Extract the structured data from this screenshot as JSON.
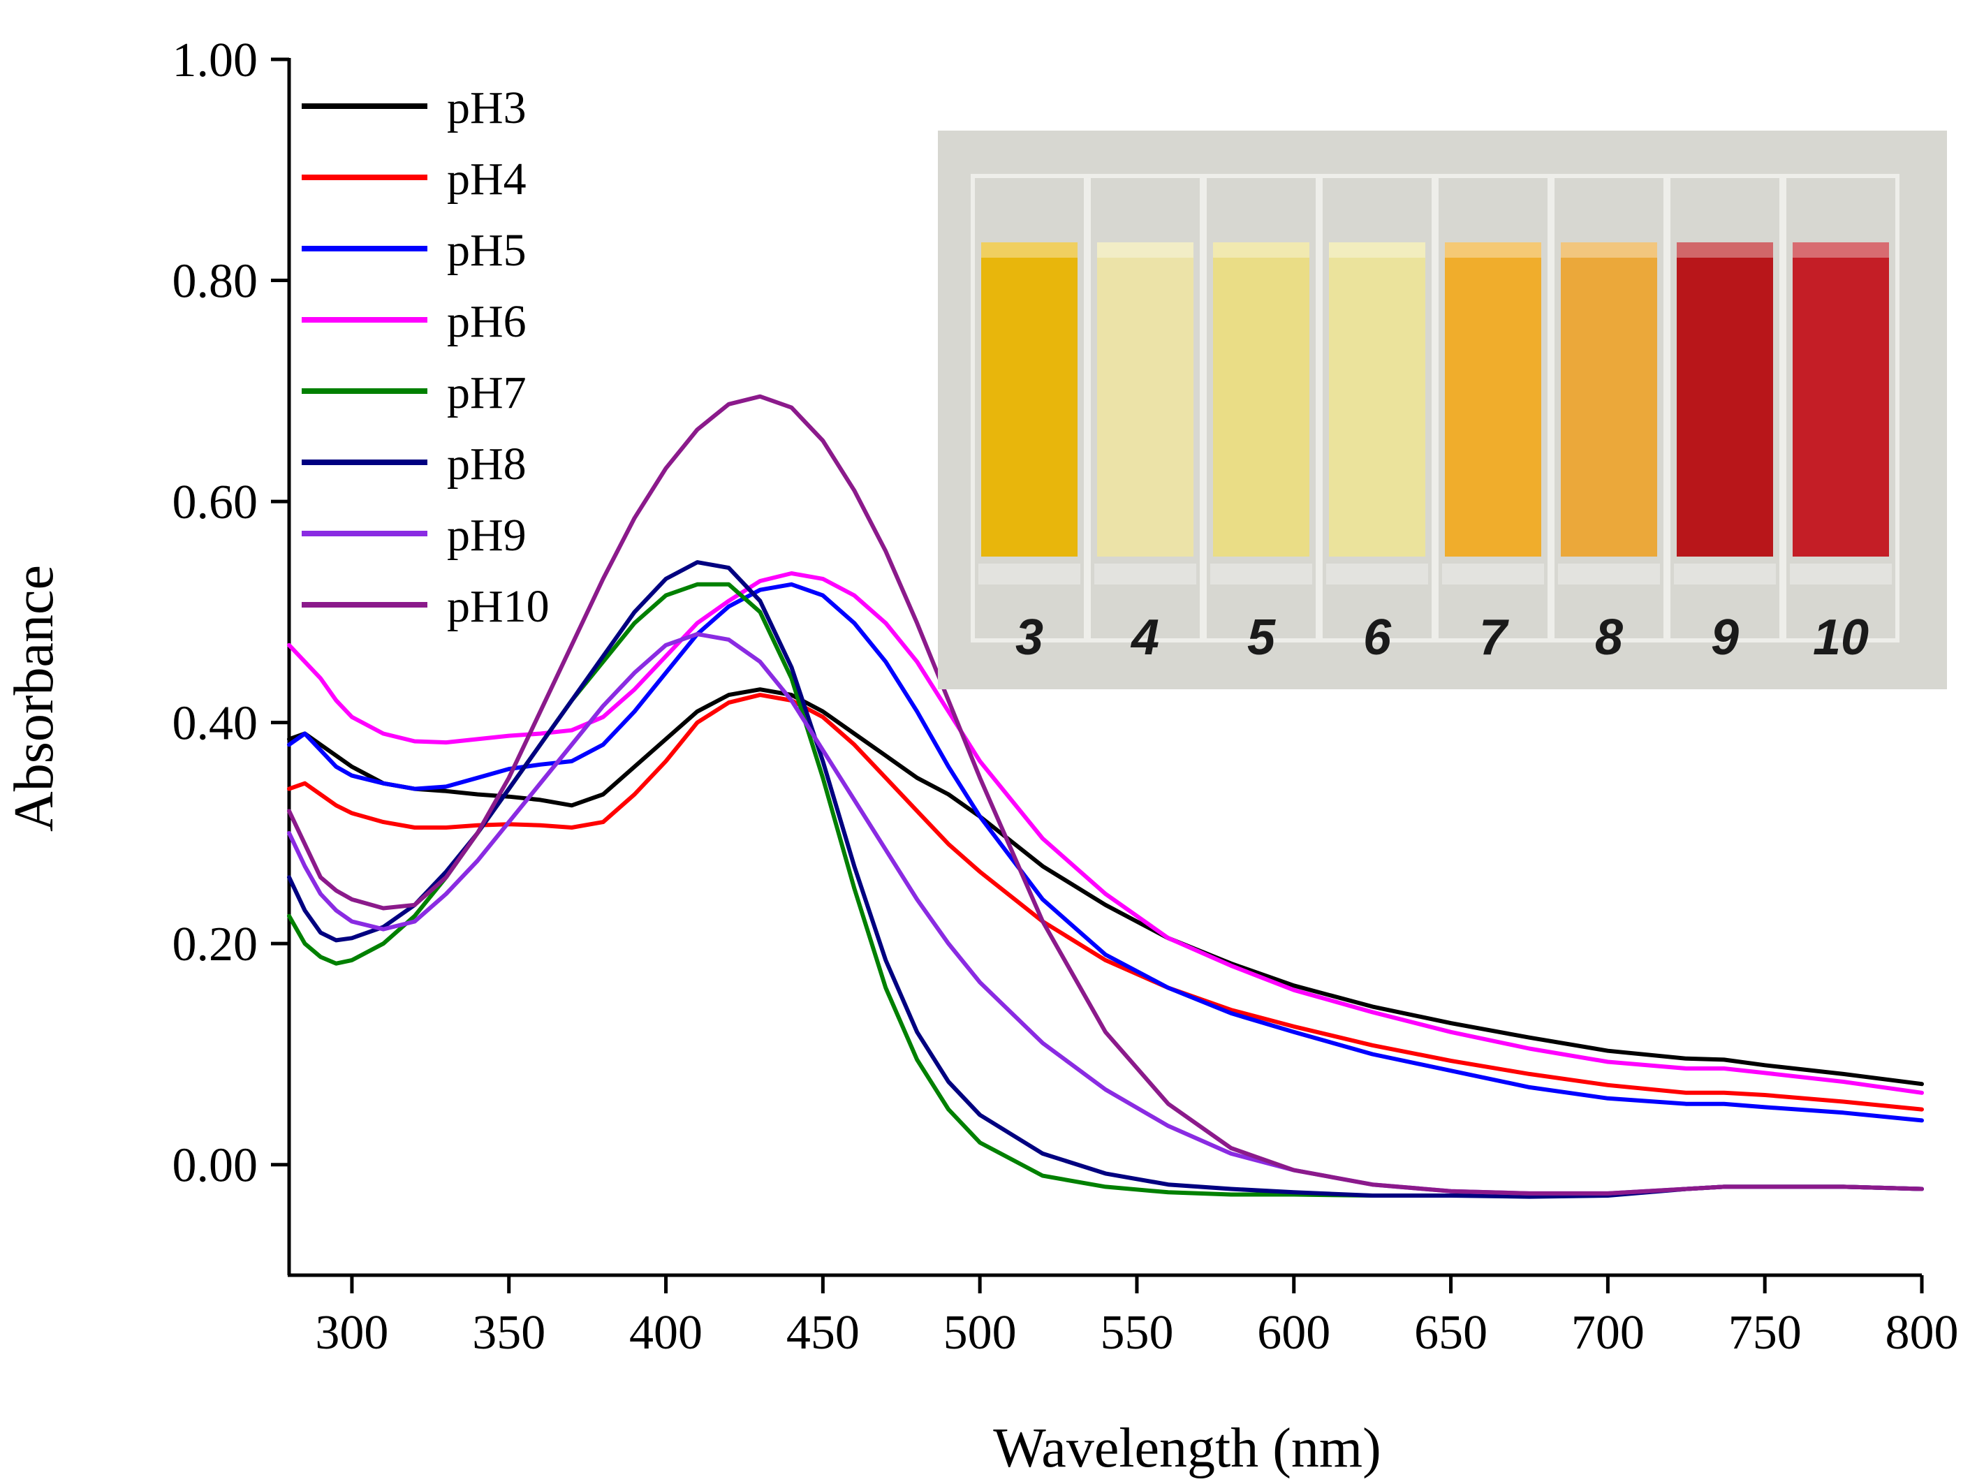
{
  "chart_data": {
    "type": "line",
    "xlabel": "Wavelength (nm)",
    "ylabel": "Absorbance",
    "xlim": [
      280,
      800
    ],
    "ylim": [
      -0.1,
      1.0
    ],
    "xticks": [
      300,
      350,
      400,
      450,
      500,
      550,
      600,
      650,
      700,
      750,
      800
    ],
    "xtick_labels": [
      "300",
      "350",
      "400",
      "450",
      "500",
      "550",
      "600",
      "650",
      "700",
      "750",
      "800"
    ],
    "yticks": [
      0.0,
      0.2,
      0.4,
      0.6,
      0.8,
      1.0
    ],
    "ytick_labels": [
      "0.00",
      "0.20",
      "0.40",
      "0.60",
      "0.80",
      "1.00"
    ],
    "grid": false,
    "legend_position": "top-left",
    "x": [
      280,
      285,
      290,
      295,
      300,
      310,
      320,
      330,
      340,
      350,
      360,
      370,
      380,
      390,
      400,
      410,
      420,
      430,
      440,
      450,
      460,
      470,
      480,
      490,
      500,
      520,
      540,
      560,
      580,
      600,
      625,
      650,
      675,
      700,
      725,
      737,
      750,
      775,
      800
    ],
    "series": [
      {
        "name": "pH3",
        "color": "#000000",
        "values": [
          0.385,
          0.39,
          0.38,
          0.37,
          0.36,
          0.345,
          0.34,
          0.338,
          0.335,
          0.333,
          0.33,
          0.325,
          0.335,
          0.36,
          0.385,
          0.41,
          0.425,
          0.43,
          0.425,
          0.41,
          0.39,
          0.37,
          0.35,
          0.335,
          0.315,
          0.27,
          0.235,
          0.205,
          0.182,
          0.162,
          0.143,
          0.128,
          0.115,
          0.103,
          0.096,
          0.095,
          0.09,
          0.082,
          0.073
        ]
      },
      {
        "name": "pH4",
        "color": "#ff0000",
        "values": [
          0.34,
          0.345,
          0.335,
          0.325,
          0.318,
          0.31,
          0.305,
          0.305,
          0.307,
          0.308,
          0.307,
          0.305,
          0.31,
          0.335,
          0.365,
          0.4,
          0.418,
          0.425,
          0.42,
          0.405,
          0.38,
          0.35,
          0.32,
          0.29,
          0.265,
          0.22,
          0.185,
          0.16,
          0.14,
          0.125,
          0.108,
          0.094,
          0.082,
          0.072,
          0.065,
          0.065,
          0.063,
          0.057,
          0.05
        ]
      },
      {
        "name": "pH5",
        "color": "#0000ff",
        "values": [
          0.38,
          0.39,
          0.375,
          0.36,
          0.352,
          0.345,
          0.34,
          0.342,
          0.35,
          0.358,
          0.362,
          0.365,
          0.38,
          0.41,
          0.445,
          0.48,
          0.505,
          0.52,
          0.525,
          0.515,
          0.49,
          0.455,
          0.41,
          0.36,
          0.315,
          0.24,
          0.19,
          0.16,
          0.137,
          0.12,
          0.1,
          0.085,
          0.07,
          0.06,
          0.055,
          0.055,
          0.052,
          0.047,
          0.04
        ]
      },
      {
        "name": "pH6",
        "color": "#ff00ff",
        "values": [
          0.47,
          0.455,
          0.44,
          0.42,
          0.405,
          0.39,
          0.383,
          0.382,
          0.385,
          0.388,
          0.39,
          0.393,
          0.405,
          0.43,
          0.46,
          0.49,
          0.51,
          0.528,
          0.535,
          0.53,
          0.515,
          0.49,
          0.455,
          0.41,
          0.365,
          0.295,
          0.245,
          0.205,
          0.18,
          0.158,
          0.138,
          0.12,
          0.105,
          0.093,
          0.087,
          0.087,
          0.083,
          0.075,
          0.065
        ]
      },
      {
        "name": "pH7",
        "color": "#008000",
        "values": [
          0.225,
          0.2,
          0.188,
          0.182,
          0.185,
          0.2,
          0.225,
          0.26,
          0.3,
          0.34,
          0.38,
          0.42,
          0.455,
          0.49,
          0.515,
          0.525,
          0.525,
          0.5,
          0.44,
          0.35,
          0.25,
          0.16,
          0.095,
          0.05,
          0.02,
          -0.01,
          -0.02,
          -0.025,
          -0.027,
          -0.027,
          -0.028,
          -0.028,
          -0.028,
          -0.027,
          -0.022,
          -0.02,
          -0.02,
          -0.02,
          -0.022
        ]
      },
      {
        "name": "pH8",
        "color": "#000080",
        "values": [
          0.26,
          0.23,
          0.21,
          0.203,
          0.205,
          0.215,
          0.235,
          0.265,
          0.3,
          0.34,
          0.38,
          0.42,
          0.46,
          0.5,
          0.53,
          0.545,
          0.54,
          0.51,
          0.45,
          0.365,
          0.27,
          0.185,
          0.12,
          0.075,
          0.045,
          0.01,
          -0.008,
          -0.018,
          -0.022,
          -0.025,
          -0.028,
          -0.028,
          -0.029,
          -0.028,
          -0.022,
          -0.02,
          -0.02,
          -0.02,
          -0.022
        ]
      },
      {
        "name": "pH9",
        "color": "#8a2be2",
        "values": [
          0.3,
          0.27,
          0.245,
          0.23,
          0.22,
          0.213,
          0.22,
          0.245,
          0.275,
          0.31,
          0.345,
          0.38,
          0.415,
          0.445,
          0.47,
          0.48,
          0.475,
          0.455,
          0.42,
          0.375,
          0.33,
          0.285,
          0.24,
          0.2,
          0.165,
          0.11,
          0.068,
          0.035,
          0.01,
          -0.005,
          -0.018,
          -0.024,
          -0.026,
          -0.026,
          -0.022,
          -0.02,
          -0.02,
          -0.02,
          -0.022
        ]
      },
      {
        "name": "pH10",
        "color": "#8b1a8b",
        "values": [
          0.32,
          0.29,
          0.26,
          0.248,
          0.24,
          0.232,
          0.235,
          0.26,
          0.3,
          0.35,
          0.41,
          0.47,
          0.53,
          0.585,
          0.63,
          0.665,
          0.688,
          0.695,
          0.685,
          0.655,
          0.61,
          0.555,
          0.49,
          0.42,
          0.35,
          0.22,
          0.12,
          0.055,
          0.015,
          -0.005,
          -0.018,
          -0.024,
          -0.026,
          -0.026,
          -0.022,
          -0.02,
          -0.02,
          -0.02,
          -0.022
        ]
      }
    ]
  },
  "inset_photo": {
    "labels": [
      "3",
      "4",
      "5",
      "6",
      "7",
      "8",
      "9",
      "10"
    ],
    "cuvette_colors": [
      "#e8b60c",
      "#ece3a8",
      "#eadd86",
      "#ebe39c",
      "#f0ad2c",
      "#eba83a",
      "#b8161a",
      "#c41e26"
    ],
    "background_color": "#d7d7d1"
  }
}
